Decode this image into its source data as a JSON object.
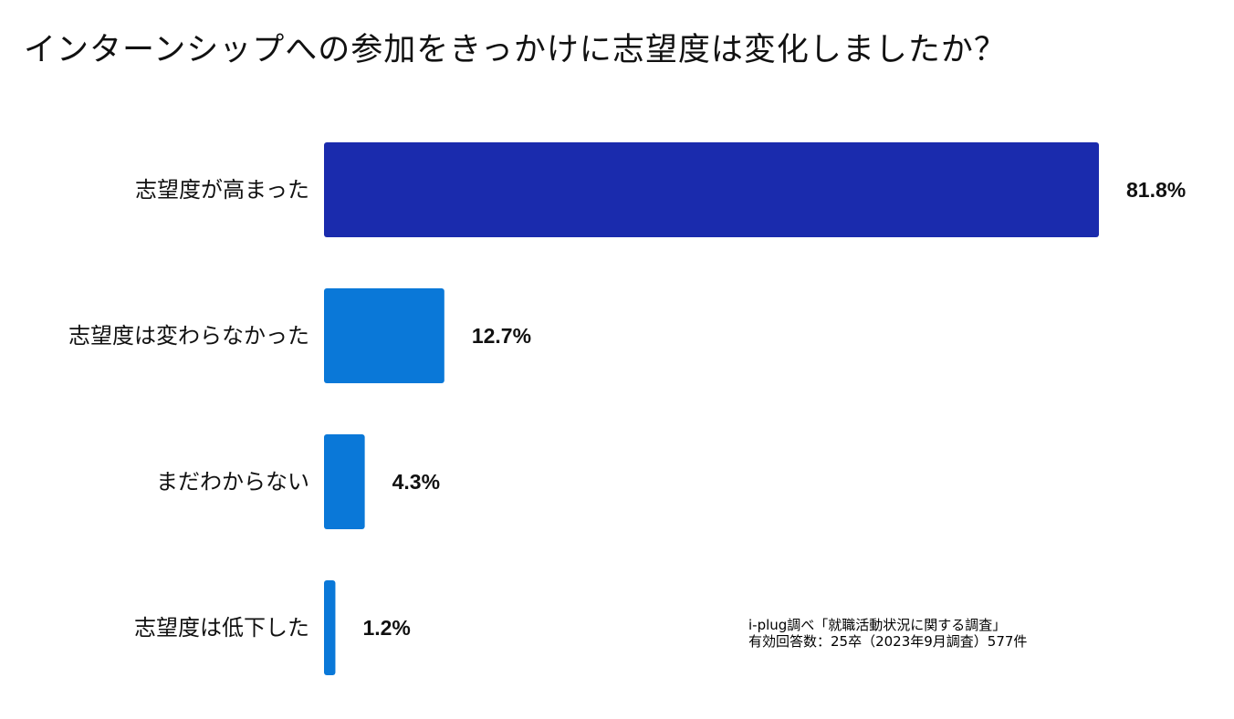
{
  "chart_data": {
    "type": "bar",
    "orientation": "horizontal",
    "title": "インターンシップへの参加をきっかけに志望度は変化しましたか？",
    "categories": [
      "志望度が高まった",
      "志望度は変わらなかった",
      "まだわからない",
      "志望度は低下した"
    ],
    "values": [
      81.8,
      12.7,
      4.3,
      1.2
    ],
    "value_labels": [
      "81.8%",
      "12.7%",
      "4.3%",
      "1.2%"
    ],
    "unit": "%",
    "xlim": [
      0,
      81.8
    ],
    "grid": false,
    "legend": "none",
    "colors": [
      "#1a2bad",
      "#0a78d8",
      "#0a78d8",
      "#0a78d8"
    ]
  },
  "source_note": {
    "line1": "i-plug調べ「就職活動状況に関する調査」",
    "line2": "有効回答数：25卒（2023年9月調査）577件"
  }
}
